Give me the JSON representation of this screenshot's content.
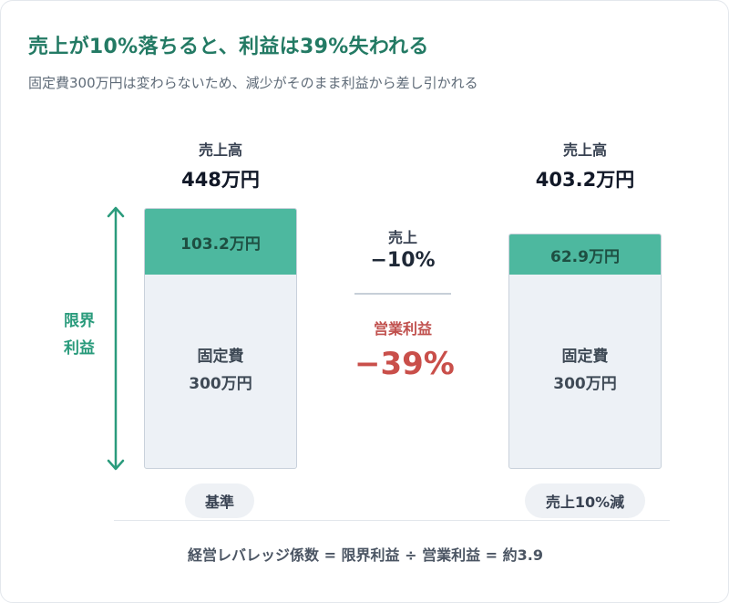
{
  "title": "売上が10%落ちると、利益は39%失われる",
  "subtitle": "固定費300万円は変わらないため、減少がそのまま利益から差し引かれる",
  "left": {
    "sales_label": "売上高",
    "sales_value": "448万円",
    "margin_value": "103.2万円",
    "fixed_label": "固定費",
    "fixed_value": "300万円",
    "tag": "基準"
  },
  "right": {
    "sales_label": "売上高",
    "sales_value": "403.2万円",
    "margin_value": "62.9万円",
    "fixed_label": "固定費",
    "fixed_value": "300万円",
    "tag": "売上10%減"
  },
  "middle": {
    "sales_label": "売上",
    "sales_change": "−10%",
    "op_label": "営業利益",
    "op_change": "−39%"
  },
  "side_label": [
    "限界",
    "利益"
  ],
  "formula": "経営レバレッジ係数 = 限界利益 ÷ 営業利益 = 約3.9",
  "colors": {
    "accent": "#237a64",
    "margin_fill": "#4db89f",
    "fixed_fill": "#edf1f6",
    "negative": "#c94f4a"
  }
}
